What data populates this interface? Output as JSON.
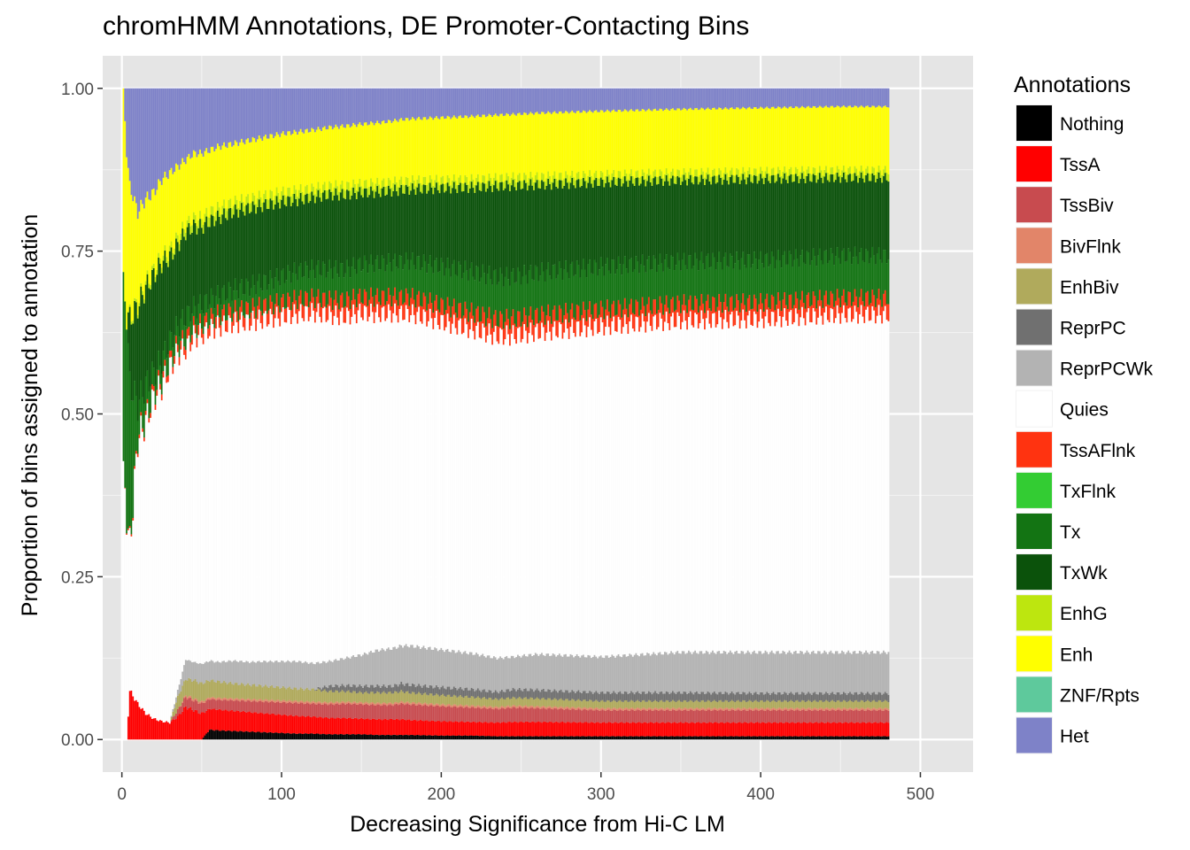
{
  "chart_data": {
    "type": "bar",
    "stacked": true,
    "title": "chromHMM Annotations, DE Promoter-Contacting Bins",
    "xlabel": "Decreasing Significance from Hi-C LM",
    "ylabel": "Proportion of bins assigned to annotation",
    "xlim": [
      -12,
      533
    ],
    "ylim": [
      -0.05,
      1.05
    ],
    "x_ticks": [
      0,
      100,
      200,
      300,
      400,
      500
    ],
    "x_tick_labels": [
      "0",
      "100",
      "200",
      "300",
      "400",
      "500"
    ],
    "y_ticks": [
      0,
      0.25,
      0.5,
      0.75,
      1.0
    ],
    "y_tick_labels": [
      "0.00",
      "0.25",
      "0.50",
      "0.75",
      "1.00"
    ],
    "grid": true,
    "legend_position": "right",
    "legend": {
      "title": "Annotations",
      "entries": [
        {
          "name": "Nothing",
          "color": "#000000"
        },
        {
          "name": "TssA",
          "color": "#ff0000"
        },
        {
          "name": "TssBiv",
          "color": "#cd5c5c"
        },
        {
          "name": "BivFlnk",
          "color": "#e9967a"
        },
        {
          "name": "EnhBiv",
          "color": "#bdb76b"
        },
        {
          "name": "ReprPC",
          "color": "#808080"
        },
        {
          "name": "ReprPCWk",
          "color": "#c0c0c0"
        },
        {
          "name": "Quies",
          "color": "#ffffff"
        },
        {
          "name": "TssAFlnk",
          "color": "#ff4500"
        },
        {
          "name": "TxFlnk",
          "color": "#32cd32"
        },
        {
          "name": "Tx",
          "color": "#008000"
        },
        {
          "name": "TxWk",
          "color": "#006400"
        },
        {
          "name": "EnhG",
          "color": "#c2e105"
        },
        {
          "name": "Enh",
          "color": "#ffff00"
        },
        {
          "name": "ZNF/Rpts",
          "color": "#66cdaa"
        },
        {
          "name": "Het",
          "color": "#8a91d0"
        }
      ]
    },
    "series_colors": {
      "Nothing": "#000000",
      "TssA": "#ff0000",
      "TssBiv": "#c84b4f",
      "BivFlnk": "#e28569",
      "EnhBiv": "#b0aa5c",
      "ReprPC": "#707070",
      "ReprPCWk": "#b3b3b3",
      "Quies": "#ffffff",
      "TssAFlnk": "#ff3310",
      "TxFlnk": "#33cc33",
      "Tx": "#137413",
      "TxWk": "#0b520b",
      "EnhG": "#bde60f",
      "Enh": "#ffff00",
      "ZNF/Rpts": "#5ec99c",
      "Het": "#7e82c8"
    },
    "x_points": [
      1,
      3,
      5,
      10,
      15,
      20,
      25,
      30,
      35,
      40,
      45,
      50,
      55,
      60,
      70,
      80,
      90,
      100,
      110,
      120,
      130,
      140,
      150,
      160,
      170,
      175,
      180,
      200,
      220,
      235,
      245,
      260,
      300,
      350,
      400,
      450,
      480
    ],
    "layer_profiles": {
      "Nothing": [
        0,
        0,
        0,
        0,
        0,
        0,
        0,
        0,
        0,
        0,
        0,
        0,
        0.015,
        0.014,
        0.013,
        0.012,
        0.011,
        0.01,
        0.009,
        0.009,
        0.008,
        0.008,
        0.008,
        0.007,
        0.007,
        0.007,
        0.007,
        0.006,
        0.006,
        0.005,
        0.005,
        0.005,
        0.005,
        0.005,
        0.005,
        0.005,
        0.005
      ],
      "TssA": [
        0,
        0,
        0.075,
        0.055,
        0.04,
        0.032,
        0.028,
        0.026,
        0.035,
        0.05,
        0.045,
        0.04,
        0.032,
        0.032,
        0.031,
        0.03,
        0.029,
        0.028,
        0.027,
        0.026,
        0.025,
        0.025,
        0.024,
        0.024,
        0.024,
        0.024,
        0.023,
        0.022,
        0.021,
        0.021,
        0.022,
        0.022,
        0.021,
        0.021,
        0.021,
        0.021,
        0.021
      ],
      "TssBiv": [
        0,
        0,
        0,
        0,
        0,
        0,
        0,
        0,
        0.01,
        0.015,
        0.015,
        0.015,
        0.015,
        0.015,
        0.016,
        0.017,
        0.018,
        0.019,
        0.02,
        0.02,
        0.021,
        0.022,
        0.022,
        0.022,
        0.022,
        0.024,
        0.024,
        0.023,
        0.022,
        0.021,
        0.022,
        0.021,
        0.019,
        0.019,
        0.019,
        0.019,
        0.019
      ],
      "BivFlnk": [
        0,
        0,
        0,
        0,
        0,
        0,
        0,
        0,
        0,
        0.003,
        0.003,
        0.003,
        0.003,
        0.003,
        0.003,
        0.003,
        0.003,
        0.003,
        0.003,
        0.003,
        0.003,
        0.003,
        0.003,
        0.003,
        0.003,
        0.003,
        0.003,
        0.003,
        0.003,
        0.003,
        0.003,
        0.003,
        0.003,
        0.003,
        0.003,
        0.003,
        0.003
      ],
      "EnhBiv": [
        0,
        0,
        0,
        0,
        0,
        0,
        0,
        0,
        0.02,
        0.025,
        0.028,
        0.028,
        0.026,
        0.025,
        0.023,
        0.022,
        0.021,
        0.02,
        0.019,
        0.019,
        0.017,
        0.016,
        0.015,
        0.016,
        0.016,
        0.016,
        0.015,
        0.014,
        0.013,
        0.012,
        0.012,
        0.012,
        0.011,
        0.011,
        0.011,
        0.011,
        0.011
      ],
      "ReprPC": [
        0,
        0,
        0,
        0,
        0,
        0,
        0,
        0,
        0,
        0,
        0,
        0,
        0,
        0,
        0,
        0,
        0,
        0,
        0,
        0,
        0.008,
        0.009,
        0.01,
        0.01,
        0.01,
        0.012,
        0.012,
        0.012,
        0.012,
        0.011,
        0.013,
        0.013,
        0.013,
        0.013,
        0.012,
        0.012,
        0.012
      ],
      "ReprPCWk": [
        0,
        0,
        0,
        0,
        0,
        0,
        0,
        0,
        0.01,
        0.03,
        0.028,
        0.03,
        0.03,
        0.03,
        0.035,
        0.035,
        0.038,
        0.04,
        0.042,
        0.04,
        0.038,
        0.042,
        0.048,
        0.055,
        0.058,
        0.058,
        0.06,
        0.058,
        0.055,
        0.052,
        0.05,
        0.055,
        0.055,
        0.062,
        0.063,
        0.063,
        0.063
      ],
      "TssAFlnk": [
        0,
        0.002,
        0.003,
        0.005,
        0.006,
        0.008,
        0.009,
        0.01,
        0.012,
        0.014,
        0.014,
        0.015,
        0.016,
        0.017,
        0.018,
        0.019,
        0.02,
        0.021,
        0.022,
        0.022,
        0.023,
        0.024,
        0.024,
        0.025,
        0.025,
        0.025,
        0.025,
        0.025,
        0.025,
        0.025,
        0.025,
        0.025,
        0.025,
        0.025,
        0.025,
        0.025,
        0.025
      ],
      "TxFlnk": [
        0,
        0,
        0,
        0,
        0,
        0,
        0,
        0,
        0,
        0,
        0,
        0,
        0,
        0,
        0,
        0,
        0,
        0,
        0,
        0,
        0,
        0,
        0,
        0,
        0,
        0,
        0,
        0,
        0,
        0,
        0,
        0,
        0,
        0,
        0,
        0,
        0
      ],
      "Tx": [
        0.3,
        0.3,
        0.25,
        0.05,
        0.05,
        0.03,
        0.03,
        0.03,
        0.03,
        0.035,
        0.03,
        0.03,
        0.03,
        0.03,
        0.033,
        0.035,
        0.037,
        0.04,
        0.043,
        0.045,
        0.047,
        0.048,
        0.05,
        0.052,
        0.053,
        0.055,
        0.055,
        0.06,
        0.063,
        0.065,
        0.065,
        0.066,
        0.066,
        0.065,
        0.065,
        0.065,
        0.065
      ],
      "TxWk": [
        0,
        0,
        0.1,
        0.15,
        0.15,
        0.15,
        0.15,
        0.13,
        0.125,
        0.13,
        0.125,
        0.12,
        0.12,
        0.12,
        0.12,
        0.12,
        0.118,
        0.115,
        0.11,
        0.11,
        0.115,
        0.115,
        0.11,
        0.11,
        0.11,
        0.11,
        0.11,
        0.12,
        0.13,
        0.14,
        0.14,
        0.135,
        0.13,
        0.125,
        0.125,
        0.12,
        0.12
      ],
      "EnhG": [
        0,
        0,
        0.004,
        0.005,
        0.006,
        0.007,
        0.008,
        0.009,
        0.01,
        0.011,
        0.012,
        0.013,
        0.014,
        0.014,
        0.014,
        0.014,
        0.014,
        0.014,
        0.014,
        0.013,
        0.013,
        0.013,
        0.013,
        0.013,
        0.013,
        0.013,
        0.013,
        0.012,
        0.012,
        0.012,
        0.012,
        0.012,
        0.011,
        0.011,
        0.011,
        0.011,
        0.011
      ],
      "Enh": [
        0.3,
        0.25,
        0.2,
        0.14,
        0.13,
        0.12,
        0.12,
        0.12,
        0.11,
        0.1,
        0.1,
        0.1,
        0.095,
        0.095,
        0.09,
        0.09,
        0.09,
        0.09,
        0.09,
        0.09,
        0.09,
        0.092,
        0.092,
        0.093,
        0.094,
        0.095,
        0.095,
        0.096,
        0.097,
        0.097,
        0.097,
        0.098,
        0.098,
        0.098,
        0.098,
        0.098,
        0.098
      ],
      "ZNF/Rpts": [
        0,
        0,
        0,
        0,
        0,
        0,
        0,
        0,
        0,
        0,
        0,
        0,
        0,
        0,
        0,
        0,
        0,
        0,
        0,
        0,
        0,
        0,
        0,
        0,
        0,
        0,
        0,
        0,
        0,
        0,
        0,
        0,
        0,
        0,
        0,
        0,
        0
      ],
      "Het": [
        0,
        0.1,
        0.15,
        0.19,
        0.17,
        0.16,
        0.14,
        0.13,
        0.12,
        0.11,
        0.1,
        0.1,
        0.095,
        0.09,
        0.085,
        0.08,
        0.075,
        0.07,
        0.067,
        0.064,
        0.06,
        0.058,
        0.055,
        0.053,
        0.05,
        0.048,
        0.047,
        0.045,
        0.043,
        0.041,
        0.04,
        0.038,
        0.035,
        0.032,
        0.03,
        0.028,
        0.028
      ]
    },
    "bar_count": 480
  }
}
